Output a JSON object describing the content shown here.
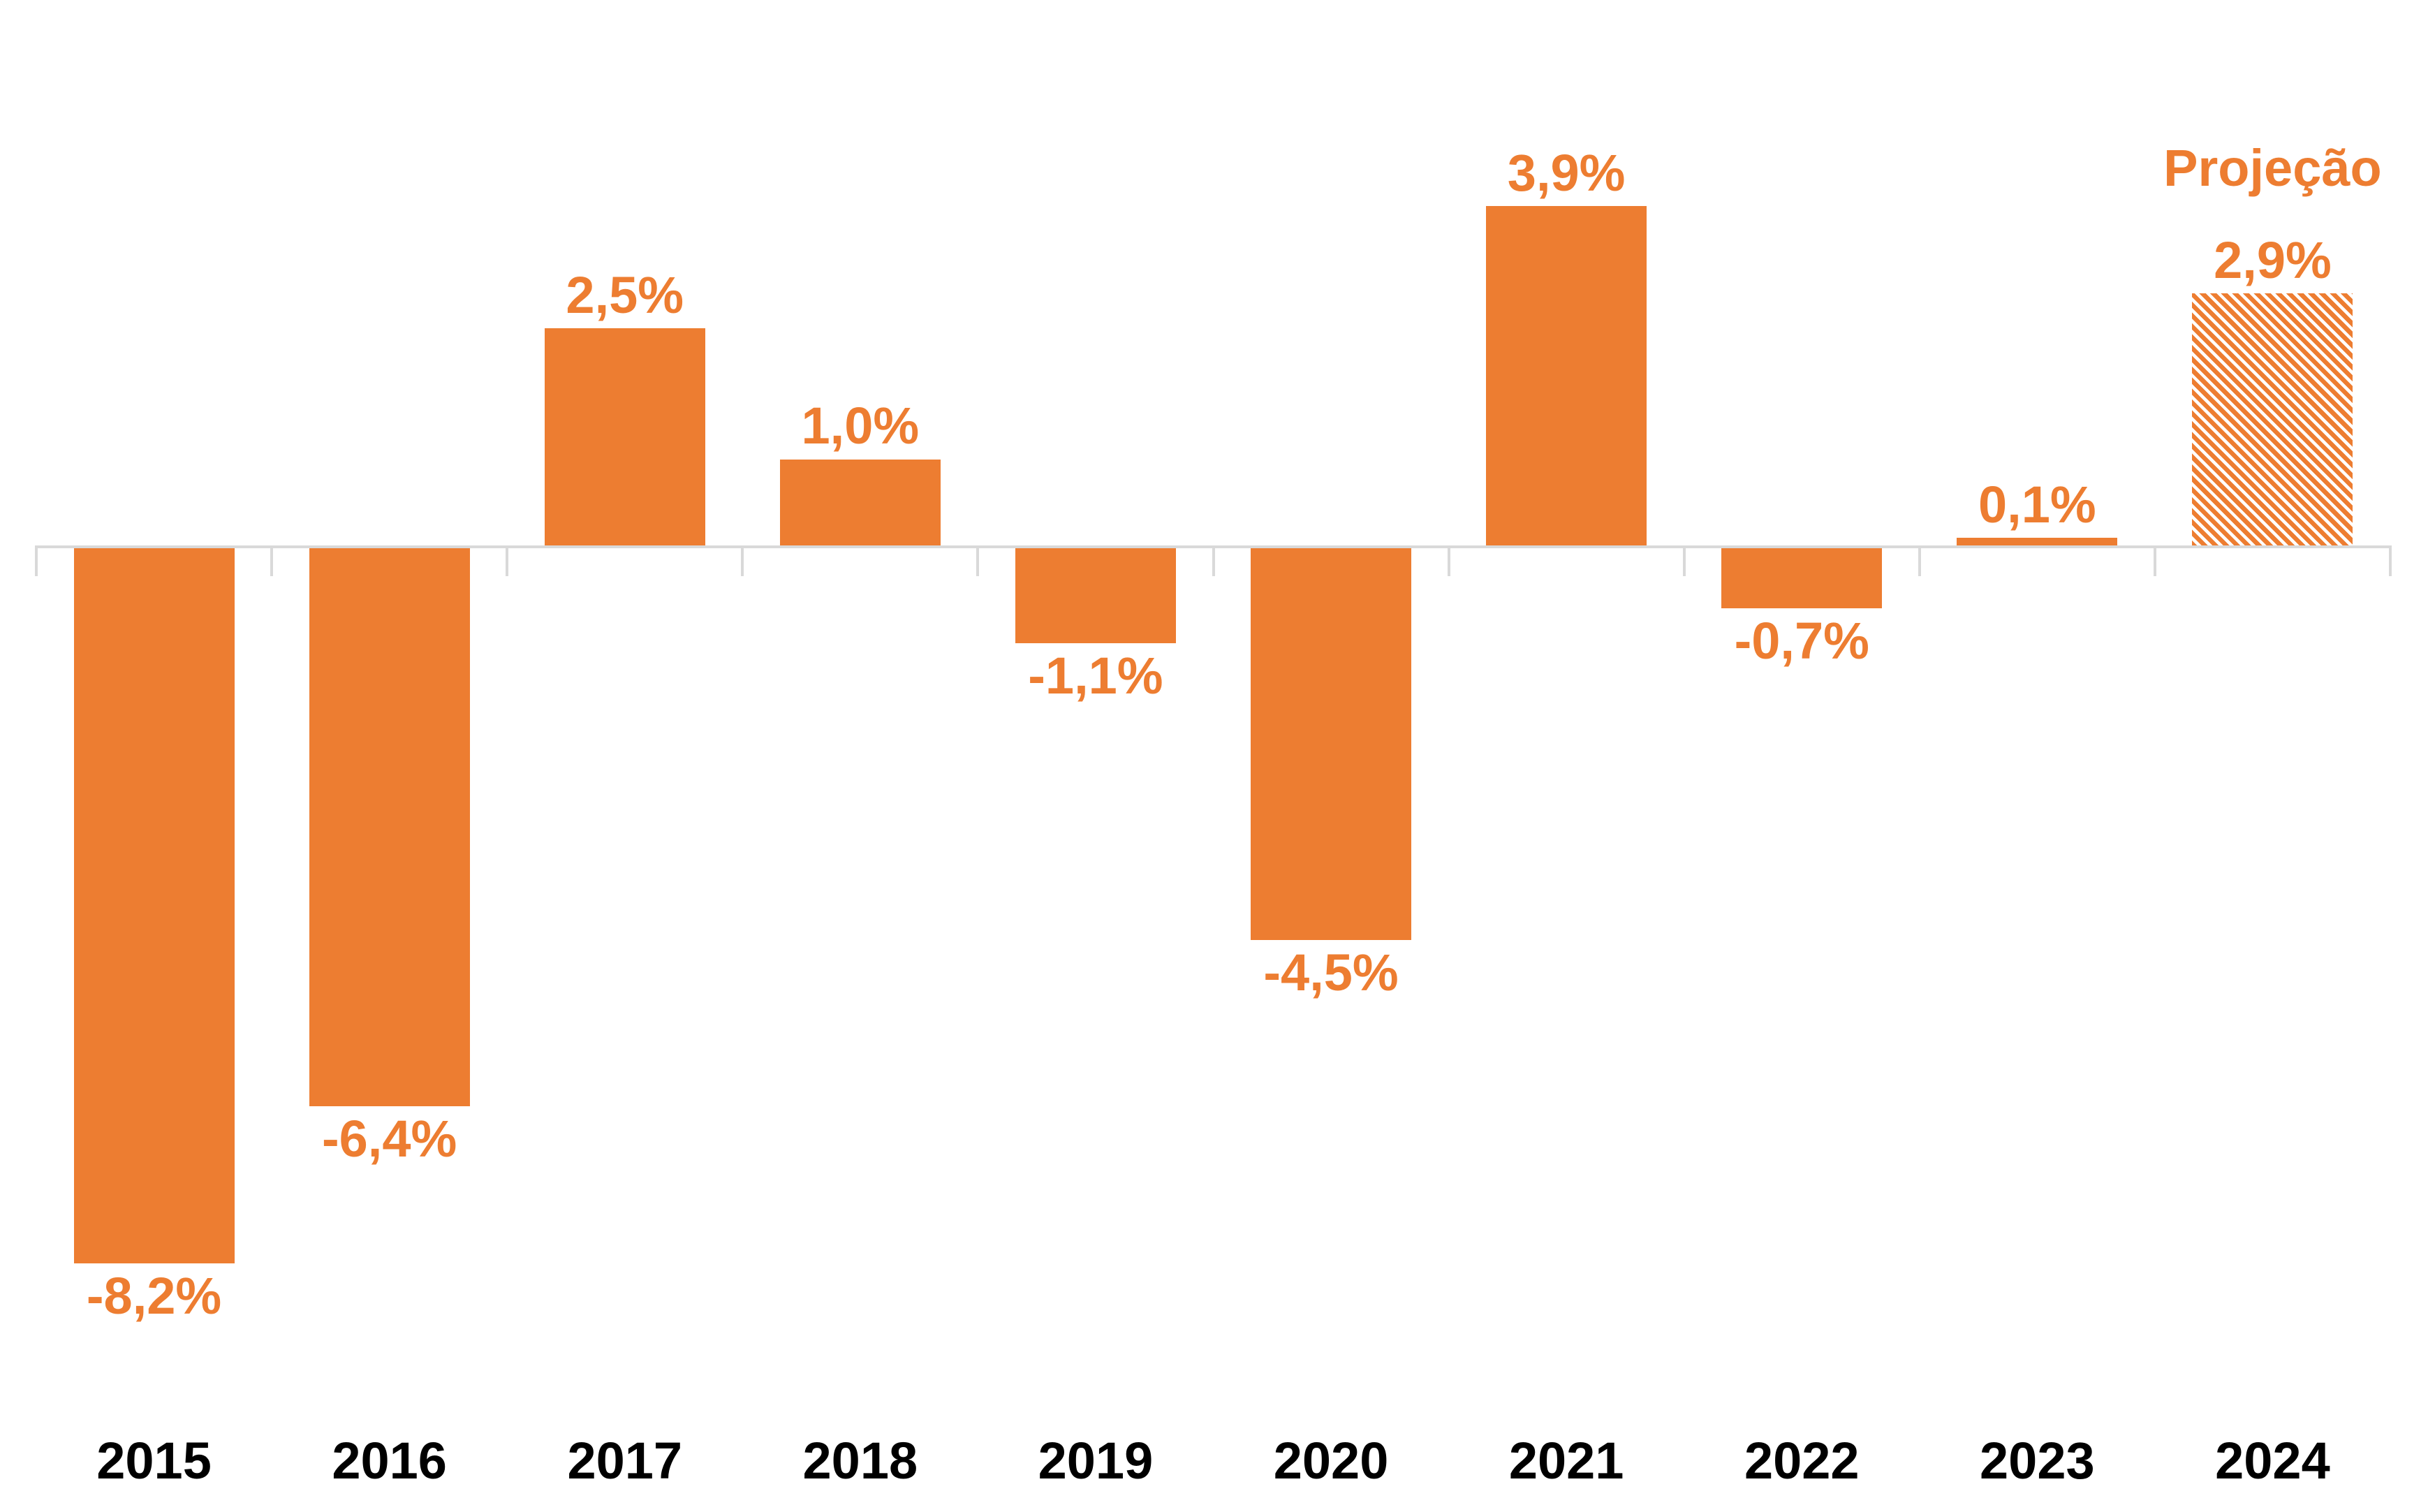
{
  "chart_data": {
    "type": "bar",
    "title": "",
    "xlabel": "",
    "ylabel": "",
    "categories": [
      "2015",
      "2016",
      "2017",
      "2018",
      "2019",
      "2020",
      "2021",
      "2022",
      "2023",
      "2024"
    ],
    "values": [
      -8.2,
      -6.4,
      2.5,
      1.0,
      -1.1,
      -4.5,
      3.9,
      -0.7,
      0.1,
      2.9
    ],
    "value_labels": [
      "-8,2%",
      "-6,4%",
      "2,5%",
      "1,0%",
      "-1,1%",
      "-4,5%",
      "3,9%",
      "-0,7%",
      "0,1%",
      "2,9%"
    ],
    "projection": {
      "index": 9,
      "label": "Projeção",
      "style": "hatched"
    },
    "ylim": [
      -8.2,
      3.9
    ],
    "grid": false,
    "legend_position": "none",
    "axis": {
      "baseline_value": 0,
      "y_axis_visible": false,
      "tick_style": "category-boundaries-below-baseline"
    },
    "colors": {
      "bar": "#ED7D31",
      "value_label": "#ED7D31",
      "category_label": "#000000",
      "axis": "#D9D9D9",
      "background": "#FFFFFF"
    }
  }
}
